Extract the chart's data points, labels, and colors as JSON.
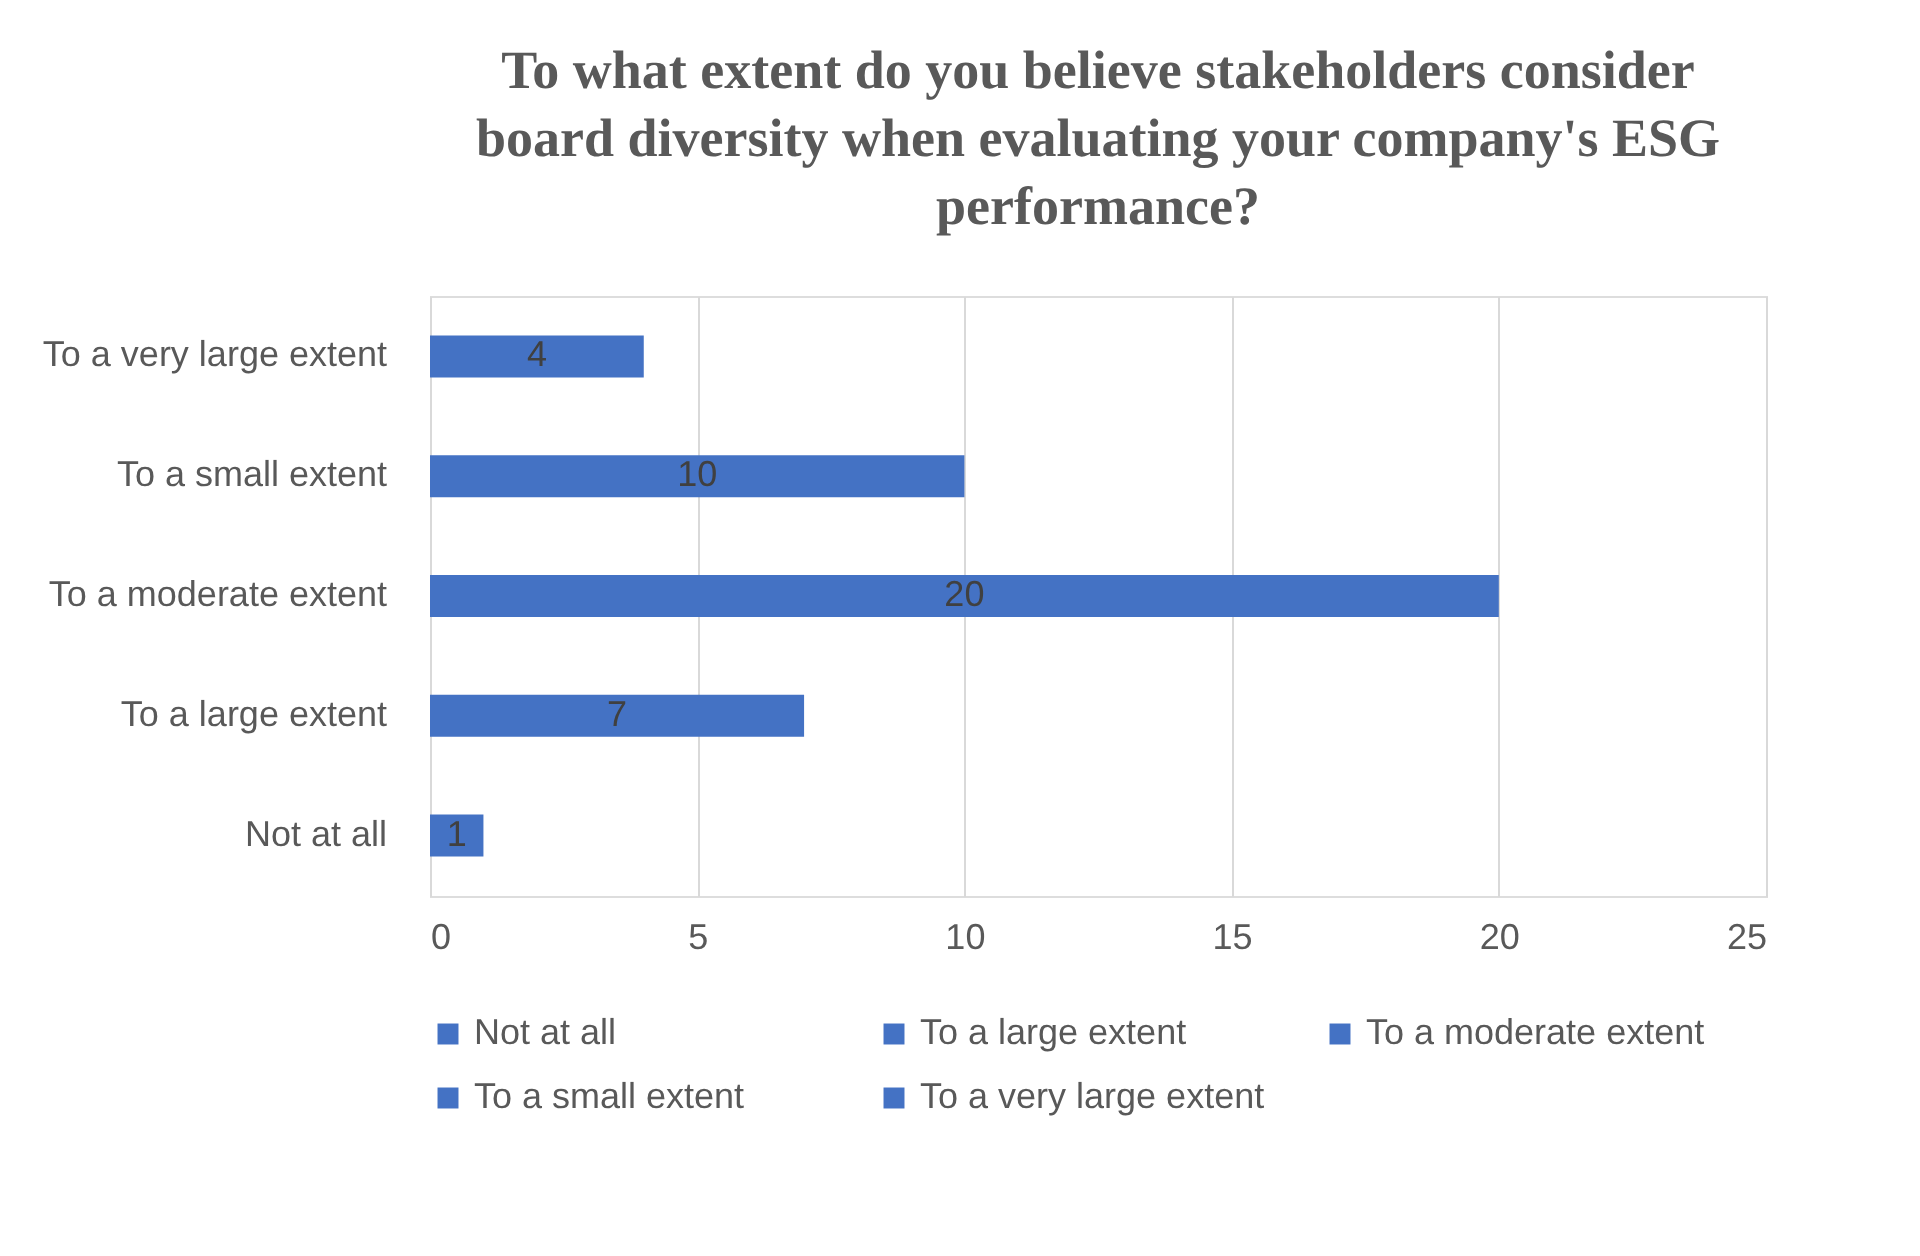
{
  "chart_data": {
    "type": "bar",
    "orientation": "horizontal",
    "title": "To what extent do you believe stakeholders consider board diversity when evaluating your company's ESG performance?",
    "categories": [
      "To a very large extent",
      "To a small extent",
      "To a moderate extent",
      "To a large extent",
      "Not at all"
    ],
    "series": [
      {
        "name": "Not at all",
        "color": "#4472c4",
        "values": [
          null,
          null,
          null,
          null,
          1
        ]
      },
      {
        "name": "To a large extent",
        "color": "#4472c4",
        "values": [
          null,
          null,
          null,
          7,
          null
        ]
      },
      {
        "name": "To a moderate extent",
        "color": "#4472c4",
        "values": [
          null,
          null,
          20,
          null,
          null
        ]
      },
      {
        "name": "To a small extent",
        "color": "#4472c4",
        "values": [
          null,
          10,
          null,
          null,
          null
        ]
      },
      {
        "name": "To a very large extent",
        "color": "#4472c4",
        "values": [
          4,
          null,
          null,
          null,
          null
        ]
      }
    ],
    "xlim": [
      0,
      25
    ],
    "xticks": [
      0,
      5,
      10,
      15,
      20,
      25
    ],
    "grid": "x",
    "data_labels": true,
    "legend": "bottom"
  }
}
